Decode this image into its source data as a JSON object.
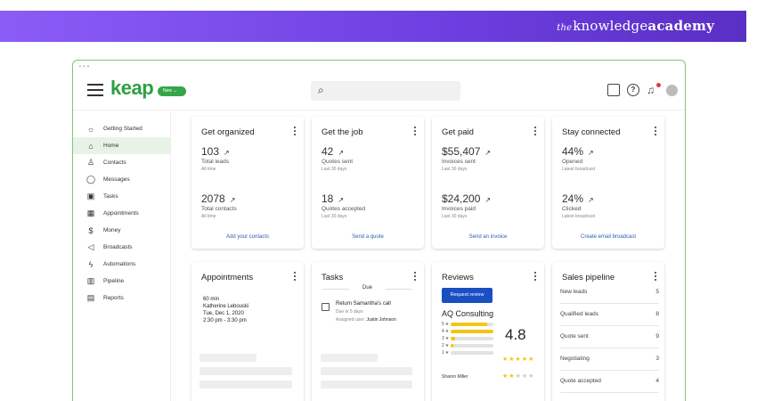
{
  "banner": {
    "brand_the": "the",
    "brand_knowledge": "knowledge",
    "brand_academy": "academy"
  },
  "app": {
    "logo": "keap",
    "new_label": "New",
    "search_placeholder": ""
  },
  "sidebar": {
    "items": [
      {
        "label": "Getting Started",
        "icon": "lightbulb-icon",
        "glyph": "☼"
      },
      {
        "label": "Home",
        "icon": "home-icon",
        "glyph": "⌂",
        "active": true
      },
      {
        "label": "Contacts",
        "icon": "person-icon",
        "glyph": "♙"
      },
      {
        "label": "Messages",
        "icon": "chat-icon",
        "glyph": "◯"
      },
      {
        "label": "Tasks",
        "icon": "clipboard-icon",
        "glyph": "▣"
      },
      {
        "label": "Appointments",
        "icon": "calendar-icon",
        "glyph": "▦"
      },
      {
        "label": "Money",
        "icon": "money-icon",
        "glyph": "$"
      },
      {
        "label": "Broadcasts",
        "icon": "megaphone-icon",
        "glyph": "◁"
      },
      {
        "label": "Automations",
        "icon": "bolt-icon",
        "glyph": "ϟ"
      },
      {
        "label": "Pipeline",
        "icon": "pipeline-icon",
        "glyph": "▥"
      },
      {
        "label": "Reports",
        "icon": "report-icon",
        "glyph": "▤"
      }
    ]
  },
  "cards": {
    "organized": {
      "title": "Get organized",
      "m1_val": "103",
      "m1_lbl": "Total leads",
      "m1_sub": "All time",
      "m2_val": "2078",
      "m2_lbl": "Total contacts",
      "m2_sub": "All time",
      "link": "Add your contacts"
    },
    "job": {
      "title": "Get the job",
      "m1_val": "42",
      "m1_lbl": "Quotes sent",
      "m1_sub": "Last 30 days",
      "m2_val": "18",
      "m2_lbl": "Quotes accepted",
      "m2_sub": "Last 30 days",
      "link": "Send a quote"
    },
    "paid": {
      "title": "Get paid",
      "m1_val": "$55,407",
      "m1_lbl": "Invoices sent",
      "m1_sub": "Last 30 days",
      "m2_val": "$24,200",
      "m2_lbl": "Invoices paid",
      "m2_sub": "Last 30 days",
      "link": "Send an invoice"
    },
    "connected": {
      "title": "Stay connected",
      "m1_val": "44%",
      "m1_lbl": "Opened",
      "m1_sub": "Latest broadcast",
      "m2_val": "24%",
      "m2_lbl": "Clicked",
      "m2_sub": "Latest broadcast",
      "link": "Create email broadcast"
    },
    "appointments": {
      "title": "Appointments",
      "duration": "60 min",
      "name": "Katherine Lebouski",
      "date": "Tue, Dec 1, 2020",
      "time": "2:30 pm - 3:30 pm"
    },
    "tasks": {
      "title": "Tasks",
      "due": "Due",
      "task_title": "Return Samantha's call",
      "task_due": "Due in 5 days",
      "assigned_prefix": "Assigned user:",
      "assigned_user": "Justin Johnson"
    },
    "reviews": {
      "title": "Reviews",
      "button": "Request review",
      "business": "AQ Consulting",
      "score": "4.8",
      "stars": "★★★★★",
      "reviewer": "Sharon Miller",
      "reviewer_stars": "★★★★★",
      "breakdown": [
        {
          "label": "5",
          "fill": 0.85
        },
        {
          "label": "4",
          "fill": 1.0
        },
        {
          "label": "3",
          "fill": 0.1
        },
        {
          "label": "2",
          "fill": 0.05
        },
        {
          "label": "1",
          "fill": 0.0
        }
      ]
    },
    "pipeline": {
      "title": "Sales pipeline",
      "rows": [
        {
          "name": "New leads",
          "count": "5"
        },
        {
          "name": "Qualified leads",
          "count": "8"
        },
        {
          "name": "Quote sent",
          "count": "9"
        },
        {
          "name": "Negotiating",
          "count": "3"
        },
        {
          "name": "Quote accepted",
          "count": "4"
        }
      ]
    }
  },
  "colors": {
    "accent_green": "#2e9e3f",
    "banner_purple": "#6d3fe0",
    "link_blue": "#2a5fb0",
    "button_blue": "#1a4fc4",
    "star_yellow": "#f5c518"
  }
}
